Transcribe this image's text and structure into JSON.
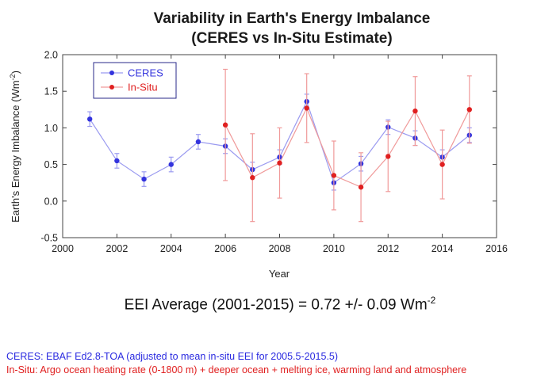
{
  "chart_data": {
    "type": "line",
    "title": "Variability in Earth's Energy Imbalance",
    "subtitle": "(CERES vs In-Situ Estimate)",
    "xlabel": "Year",
    "ylabel": "Earth's Energy Imbalance (Wm",
    "ylabel_sup": "-2",
    "ylabel_close": ")",
    "xlim": [
      2000,
      2016
    ],
    "ylim": [
      -0.5,
      2.0
    ],
    "xticks": [
      2000,
      2002,
      2004,
      2006,
      2008,
      2010,
      2012,
      2014,
      2016
    ],
    "yticks": [
      -0.5,
      0.0,
      0.5,
      1.0,
      1.5,
      2.0
    ],
    "ytick_labels": [
      "-0.5",
      "0.0",
      "0.5",
      "1.0",
      "1.5",
      "2.0"
    ],
    "legend_position": "top-left",
    "series": [
      {
        "name": "CERES",
        "color": "#3333dd",
        "line_color": "#9a9af0",
        "x": [
          2001,
          2002,
          2003,
          2004,
          2005,
          2006,
          2007,
          2008,
          2009,
          2010,
          2011,
          2012,
          2013,
          2014,
          2015
        ],
        "values": [
          1.12,
          0.55,
          0.3,
          0.5,
          0.81,
          0.75,
          0.43,
          0.6,
          1.36,
          0.25,
          0.51,
          1.01,
          0.86,
          0.6,
          0.9
        ],
        "err": [
          0.1,
          0.1,
          0.1,
          0.1,
          0.1,
          0.1,
          0.1,
          0.1,
          0.1,
          0.1,
          0.1,
          0.1,
          0.1,
          0.1,
          0.1
        ]
      },
      {
        "name": "In-Situ",
        "color": "#e02020",
        "line_color": "#f09a9a",
        "x": [
          2006,
          2007,
          2008,
          2009,
          2010,
          2011,
          2012,
          2013,
          2014,
          2015
        ],
        "values": [
          1.04,
          0.32,
          0.52,
          1.27,
          0.35,
          0.19,
          0.61,
          1.23,
          0.5,
          1.25
        ],
        "err": [
          0.76,
          0.6,
          0.48,
          0.47,
          0.47,
          0.47,
          0.48,
          0.47,
          0.47,
          0.46
        ]
      }
    ]
  },
  "footer": {
    "eei_text": "EEI Average (2001-2015) = 0.72 +/- 0.09 Wm",
    "eei_sup": "-2",
    "ceres_note": "CERES: EBAF Ed2.8-TOA (adjusted to mean in-situ EEI for 2005.5-2015.5)",
    "insitu_note": "In-Situ: Argo ocean heating rate (0-1800 m) + deeper ocean + melting ice, warming land and atmosphere",
    "ceres_note_color": "#2a2ae0",
    "insitu_note_color": "#e02020"
  }
}
